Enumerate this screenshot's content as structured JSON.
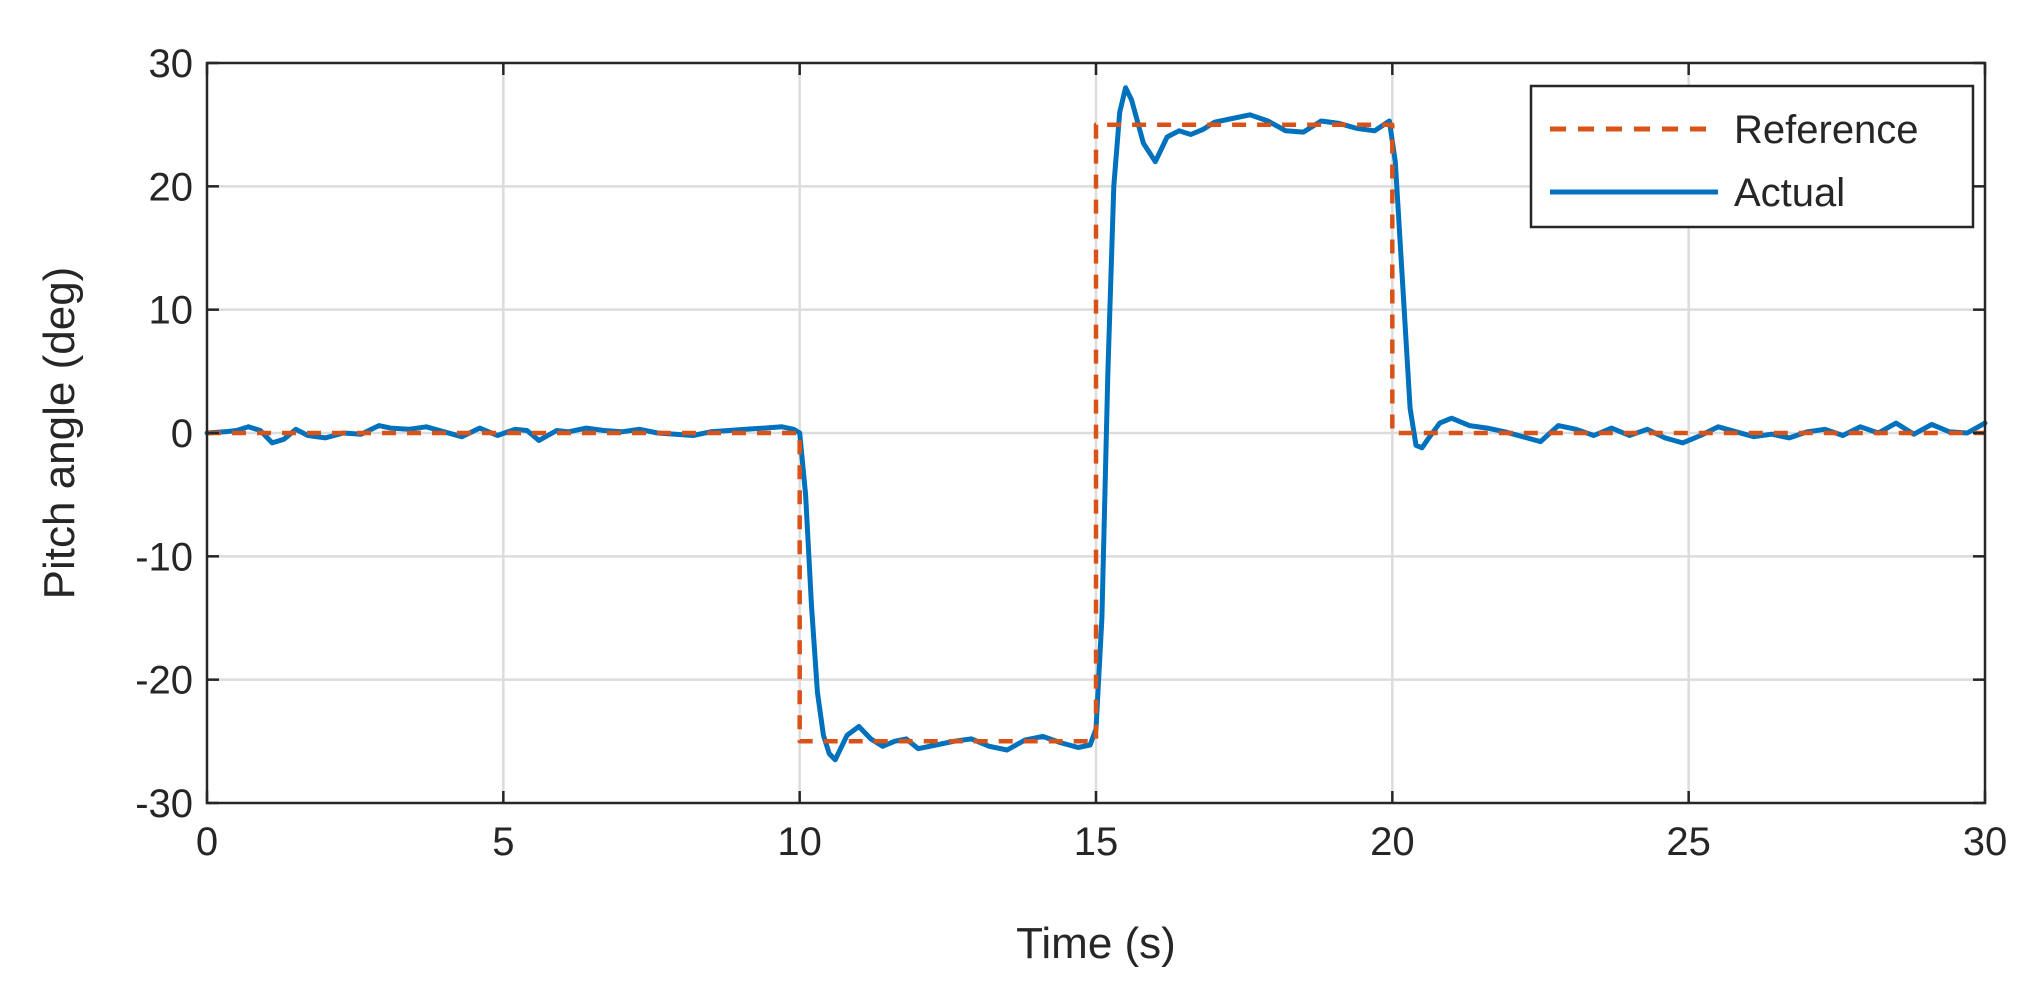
{
  "chart_data": {
    "type": "line",
    "title": "",
    "xlabel": "Time (s)",
    "ylabel": "Pitch angle (deg)",
    "xlim": [
      0,
      30
    ],
    "ylim": [
      -30,
      30
    ],
    "xticks": [
      0,
      5,
      10,
      15,
      20,
      25,
      30
    ],
    "yticks": [
      -30,
      -20,
      -10,
      0,
      10,
      20,
      30
    ],
    "xtick_labels": [
      "0",
      "5",
      "10",
      "15",
      "20",
      "25",
      "30"
    ],
    "ytick_labels": [
      "-30",
      "-20",
      "-10",
      "0",
      "10",
      "20",
      "30"
    ],
    "grid": true,
    "legend_position": "top-right",
    "series": [
      {
        "name": "Reference",
        "style": "dashed",
        "color": "#D95319",
        "x": [
          0,
          10,
          10,
          15,
          15,
          20,
          20,
          30
        ],
        "y": [
          0,
          0,
          -25,
          -25,
          25,
          25,
          0,
          0
        ]
      },
      {
        "name": "Actual",
        "style": "solid",
        "color": "#0072BD",
        "x": [
          0,
          0.3,
          0.5,
          0.7,
          0.9,
          1.1,
          1.3,
          1.5,
          1.7,
          2.0,
          2.3,
          2.6,
          2.9,
          3.1,
          3.4,
          3.7,
          4.0,
          4.3,
          4.6,
          4.9,
          5.2,
          5.4,
          5.6,
          5.9,
          6.1,
          6.4,
          6.7,
          7.0,
          7.3,
          7.6,
          7.9,
          8.2,
          8.5,
          8.8,
          9.1,
          9.4,
          9.7,
          9.9,
          10.0,
          10.1,
          10.2,
          10.3,
          10.4,
          10.5,
          10.6,
          10.8,
          11.0,
          11.2,
          11.4,
          11.6,
          11.8,
          12.0,
          12.3,
          12.6,
          12.9,
          13.2,
          13.5,
          13.8,
          14.1,
          14.4,
          14.7,
          14.9,
          15.0,
          15.1,
          15.2,
          15.3,
          15.4,
          15.5,
          15.6,
          15.8,
          16.0,
          16.2,
          16.4,
          16.6,
          16.8,
          17.0,
          17.3,
          17.6,
          17.9,
          18.2,
          18.5,
          18.8,
          19.1,
          19.4,
          19.7,
          19.95,
          20.05,
          20.2,
          20.3,
          20.4,
          20.5,
          20.6,
          20.8,
          21.0,
          21.3,
          21.6,
          21.9,
          22.2,
          22.5,
          22.8,
          23.1,
          23.4,
          23.7,
          24.0,
          24.3,
          24.6,
          24.9,
          25.2,
          25.5,
          25.8,
          26.1,
          26.4,
          26.7,
          27.0,
          27.3,
          27.6,
          27.9,
          28.2,
          28.5,
          28.8,
          29.1,
          29.4,
          29.7,
          30.0
        ],
        "y": [
          0,
          0.1,
          0.2,
          0.5,
          0.2,
          -0.8,
          -0.5,
          0.3,
          -0.2,
          -0.4,
          0,
          -0.1,
          0.6,
          0.4,
          0.3,
          0.5,
          0.1,
          -0.3,
          0.4,
          -0.2,
          0.3,
          0.2,
          -0.6,
          0.2,
          0.1,
          0.4,
          0.2,
          0.1,
          0.3,
          0,
          -0.1,
          -0.2,
          0.1,
          0.2,
          0.3,
          0.4,
          0.5,
          0.3,
          0,
          -5,
          -14,
          -21,
          -24.5,
          -26,
          -26.5,
          -24.5,
          -23.8,
          -24.8,
          -25.4,
          -25,
          -24.8,
          -25.6,
          -25.3,
          -25.0,
          -24.8,
          -25.4,
          -25.7,
          -24.9,
          -24.6,
          -25.1,
          -25.5,
          -25.3,
          -24,
          -15,
          5,
          20,
          26,
          28,
          27,
          23.5,
          22,
          24,
          24.5,
          24.2,
          24.6,
          25.2,
          25.5,
          25.8,
          25.3,
          24.5,
          24.4,
          25.3,
          25.1,
          24.7,
          24.5,
          25.3,
          22,
          10,
          2,
          -1,
          -1.2,
          -0.5,
          0.8,
          1.2,
          0.6,
          0.4,
          0.1,
          -0.3,
          -0.7,
          0.6,
          0.3,
          -0.2,
          0.4,
          -0.2,
          0.3,
          -0.4,
          -0.8,
          -0.2,
          0.5,
          0.1,
          -0.3,
          -0.1,
          -0.4,
          0.1,
          0.3,
          -0.2,
          0.5,
          0,
          0.8,
          -0.1,
          0.7,
          0.1,
          0,
          0.8
        ]
      }
    ]
  }
}
